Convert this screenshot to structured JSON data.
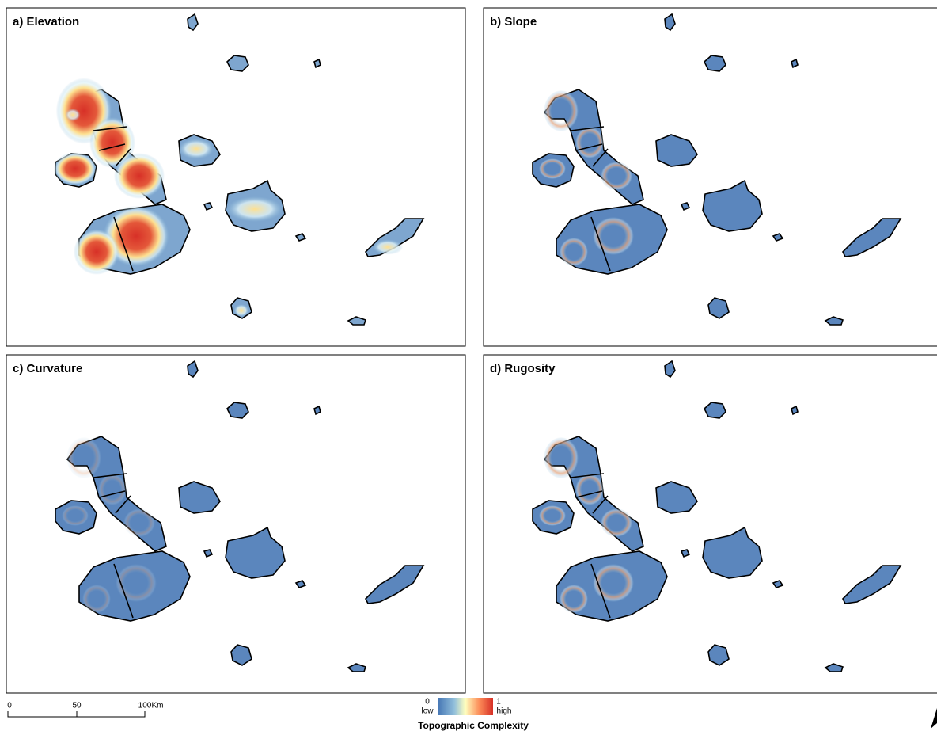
{
  "panels": [
    {
      "title": "a) Elevation"
    },
    {
      "title": "b) Slope"
    },
    {
      "title": "c) Curvature"
    },
    {
      "title": "d) Rugosity"
    }
  ],
  "legend": {
    "min_value": "0",
    "min_label": "low",
    "max_value": "1",
    "max_label": "high",
    "title": "Topographic Complexity"
  },
  "scale_bar": {
    "ticks": [
      "0",
      "50",
      "100"
    ],
    "unit": "Km"
  }
}
